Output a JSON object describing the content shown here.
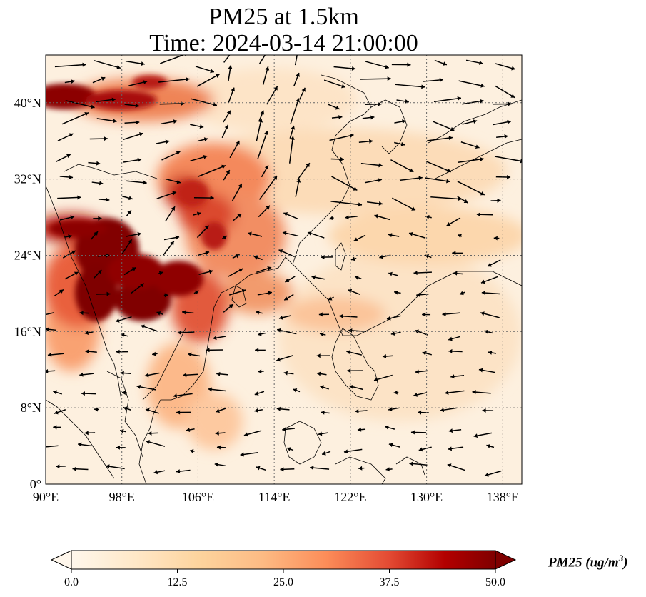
{
  "title": {
    "line1": "PM25 at 1.5km",
    "line2": "Time: 2024-03-14 21:00:00"
  },
  "map": {
    "lon_range": [
      90,
      140
    ],
    "lat_range": [
      0,
      45
    ],
    "x_ticks": [
      {
        "lon": 90,
        "label": "90°E"
      },
      {
        "lon": 98,
        "label": "98°E"
      },
      {
        "lon": 106,
        "label": "106°E"
      },
      {
        "lon": 114,
        "label": "114°E"
      },
      {
        "lon": 122,
        "label": "122°E"
      },
      {
        "lon": 130,
        "label": "130°E"
      },
      {
        "lon": 138,
        "label": "138°E"
      }
    ],
    "y_ticks": [
      {
        "lat": 0,
        "label": "0°"
      },
      {
        "lat": 8,
        "label": "8°N"
      },
      {
        "lat": 16,
        "label": "16°N"
      },
      {
        "lat": 24,
        "label": "24°N"
      },
      {
        "lat": 32,
        "label": "32°N"
      },
      {
        "lat": 40,
        "label": "40°N"
      }
    ],
    "grid": true,
    "colormap": "OrRd",
    "colors": {
      "background": "#fdf1e2",
      "low": "#fff7ec",
      "mid": "#fdbb84",
      "high": "#d7301f",
      "max": "#7f0000",
      "grid": "#666666",
      "coast": "#000000"
    }
  },
  "colorbar": {
    "label": "PM25 (ug/m",
    "label_exp": "3",
    "label_end": ")",
    "range": [
      0,
      50
    ],
    "extend": "both",
    "ticks": [
      "0.0",
      "12.5",
      "25.0",
      "37.5",
      "50.0"
    ],
    "tick_values": [
      0,
      12.5,
      25,
      37.5,
      50
    ]
  }
}
